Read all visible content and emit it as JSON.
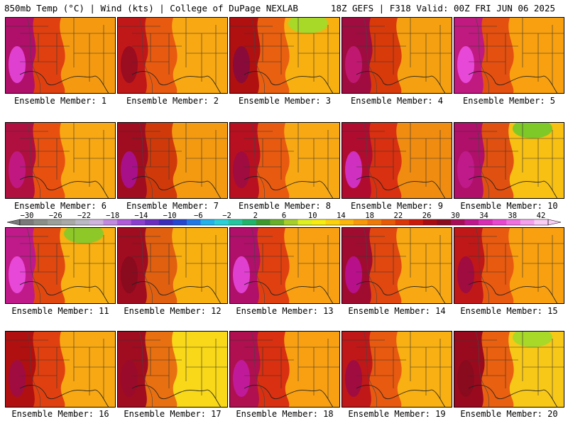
{
  "header": {
    "left": "850mb Temp (°C) | Wind (kts) | College of DuPage NEXLAB",
    "right": "18Z GEFS | F318 Valid: 00Z FRI JUN 06 2025"
  },
  "colorbar": {
    "ticks": [
      "−30",
      "−26",
      "−22",
      "−18",
      "−14",
      "−10",
      "−6",
      "−2",
      "2",
      "6",
      "10",
      "14",
      "18",
      "22",
      "26",
      "30",
      "34",
      "38",
      "42"
    ],
    "colors": [
      "#7a7a7a",
      "#8a8f88",
      "#9ba09a",
      "#a9aaa8",
      "#b9b8c4",
      "#cfb4df",
      "#c289e0",
      "#b05bd9",
      "#8a3fcf",
      "#6a2dc0",
      "#3a2db8",
      "#2446d0",
      "#1f78e6",
      "#20b2e8",
      "#2ad0d8",
      "#24c8a0",
      "#1eb46a",
      "#3c9a2c",
      "#66b02a",
      "#a6cf2a",
      "#dff020",
      "#f8ec10",
      "#fcd20c",
      "#fcb80a",
      "#f89808",
      "#f07a08",
      "#e85a06",
      "#dc3606",
      "#cc1a0a",
      "#a80c12",
      "#8a0a1e",
      "#a80c58",
      "#c0168e",
      "#d82cb4",
      "#e848d0",
      "#f070e0",
      "#f4a0ec",
      "#f8ccf4"
    ]
  },
  "panels": [
    {
      "label": "Ensemble Member: 1",
      "west": "#b0106a",
      "mid": "#e04010",
      "east": "#f59a10",
      "hot": "#e040d0",
      "cool": ""
    },
    {
      "label": "Ensemble Member: 2",
      "west": "#c01818",
      "mid": "#e85a10",
      "east": "#f8a812",
      "hot": "#9a0c20",
      "cool": ""
    },
    {
      "label": "Ensemble Member: 3",
      "west": "#b01010",
      "mid": "#e86010",
      "east": "#f8b010",
      "hot": "#8a0a3a",
      "cool": "#a8d828"
    },
    {
      "label": "Ensemble Member: 4",
      "west": "#a00c40",
      "mid": "#d83a0a",
      "east": "#f5a010",
      "hot": "#c01870",
      "cool": ""
    },
    {
      "label": "Ensemble Member: 5",
      "west": "#c01a80",
      "mid": "#e45010",
      "east": "#f8a010",
      "hot": "#e848d8",
      "cool": ""
    },
    {
      "label": "Ensemble Member: 6",
      "west": "#b01040",
      "mid": "#e85010",
      "east": "#f8a812",
      "hot": "#c01880",
      "cool": ""
    },
    {
      "label": "Ensemble Member: 7",
      "west": "#a00c20",
      "mid": "#d03a0a",
      "east": "#f49a10",
      "hot": "#a8108a",
      "cool": ""
    },
    {
      "label": "Ensemble Member: 8",
      "west": "#b81020",
      "mid": "#e85a10",
      "east": "#f8a812",
      "hot": "#a00c40",
      "cool": ""
    },
    {
      "label": "Ensemble Member: 9",
      "west": "#b00c30",
      "mid": "#d83010",
      "east": "#f08c10",
      "hot": "#d030c0",
      "cool": ""
    },
    {
      "label": "Ensemble Member: 10",
      "west": "#b0106a",
      "mid": "#e05010",
      "east": "#f8c012",
      "hot": "#c01a8a",
      "cool": "#7ec828"
    },
    {
      "label": "Ensemble Member: 11",
      "west": "#c01a8a",
      "mid": "#e04810",
      "east": "#f8b012",
      "hot": "#e848d8",
      "cool": "#8ec828"
    },
    {
      "label": "Ensemble Member: 12",
      "west": "#a00c20",
      "mid": "#e06010",
      "east": "#f8b010",
      "hot": "#8a0a1e",
      "cool": ""
    },
    {
      "label": "Ensemble Member: 13",
      "west": "#b0106a",
      "mid": "#e04010",
      "east": "#f8a012",
      "hot": "#e040d0",
      "cool": ""
    },
    {
      "label": "Ensemble Member: 14",
      "west": "#a00c30",
      "mid": "#e04810",
      "east": "#f8a812",
      "hot": "#b8108a",
      "cool": ""
    },
    {
      "label": "Ensemble Member: 15",
      "west": "#c01818",
      "mid": "#e85a10",
      "east": "#f8a010",
      "hot": "#a00c40",
      "cool": ""
    },
    {
      "label": "Ensemble Member: 16",
      "west": "#b01010",
      "mid": "#e04010",
      "east": "#f8a812",
      "hot": "#a00c40",
      "cool": ""
    },
    {
      "label": "Ensemble Member: 17",
      "west": "#a00c20",
      "mid": "#e87010",
      "east": "#f8d818",
      "hot": "#9a0a2a",
      "cool": ""
    },
    {
      "label": "Ensemble Member: 18",
      "west": "#b01050",
      "mid": "#d83010",
      "east": "#f8a012",
      "hot": "#c01a9a",
      "cool": ""
    },
    {
      "label": "Ensemble Member: 19",
      "west": "#c01818",
      "mid": "#e85a10",
      "east": "#f8b012",
      "hot": "#a00c40",
      "cool": ""
    },
    {
      "label": "Ensemble Member: 20",
      "west": "#9a0a1e",
      "mid": "#e86010",
      "east": "#f8c818",
      "hot": "#8a0a1e",
      "cool": "#a8d828"
    }
  ]
}
